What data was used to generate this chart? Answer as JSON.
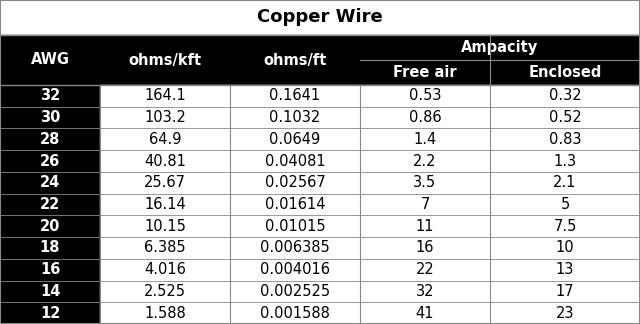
{
  "title": "Copper Wire",
  "rows": [
    [
      "32",
      "164.1",
      "0.1641",
      "0.53",
      "0.32"
    ],
    [
      "30",
      "103.2",
      "0.1032",
      "0.86",
      "0.52"
    ],
    [
      "28",
      "64.9",
      "0.0649",
      "1.4",
      "0.83"
    ],
    [
      "26",
      "40.81",
      "0.04081",
      "2.2",
      "1.3"
    ],
    [
      "24",
      "25.67",
      "0.02567",
      "3.5",
      "2.1"
    ],
    [
      "22",
      "16.14",
      "0.01614",
      "7",
      "5"
    ],
    [
      "20",
      "10.15",
      "0.01015",
      "11",
      "7.5"
    ],
    [
      "18",
      "6.385",
      "0.006385",
      "16",
      "10"
    ],
    [
      "16",
      "4.016",
      "0.004016",
      "22",
      "13"
    ],
    [
      "14",
      "2.525",
      "0.002525",
      "32",
      "17"
    ],
    [
      "12",
      "1.588",
      "0.001588",
      "41",
      "23"
    ]
  ],
  "bg_color": "#000000",
  "title_bg": "#ffffff",
  "title_color": "#000000",
  "header_bg": "#000000",
  "header_color": "#ffffff",
  "awg_col_bg": "#000000",
  "data_col_bg": "#ffffff",
  "awg_text_color": "#ffffff",
  "data_text_color": "#000000",
  "line_color": "#888888",
  "title_fontsize": 13,
  "header_fontsize": 10.5,
  "data_fontsize": 10.5,
  "fig_width": 6.4,
  "fig_height": 3.24,
  "dpi": 100
}
